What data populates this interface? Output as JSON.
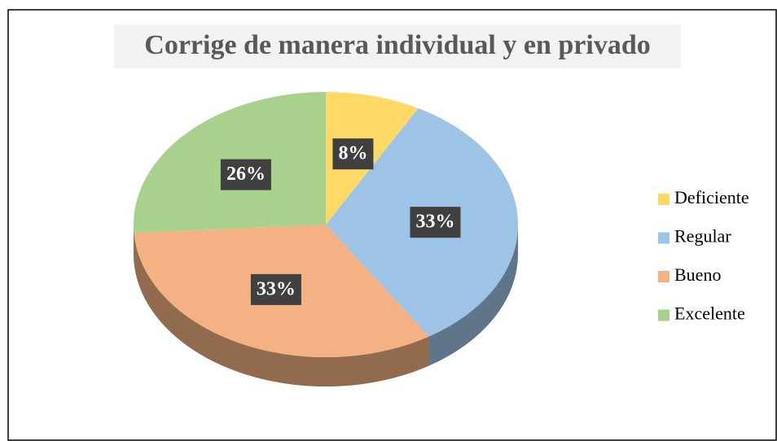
{
  "chart_data": {
    "type": "pie",
    "title": "Corrige de manera individual y en privado",
    "categories": [
      "Deficiente",
      "Regular",
      "Bueno",
      "Excelente"
    ],
    "values": [
      8,
      33,
      33,
      26
    ],
    "value_labels": [
      "8%",
      "33%",
      "33%",
      "26%"
    ],
    "colors": [
      "#ffd966",
      "#9dc3e6",
      "#f4b183",
      "#a9d18e"
    ],
    "legend": "right"
  }
}
